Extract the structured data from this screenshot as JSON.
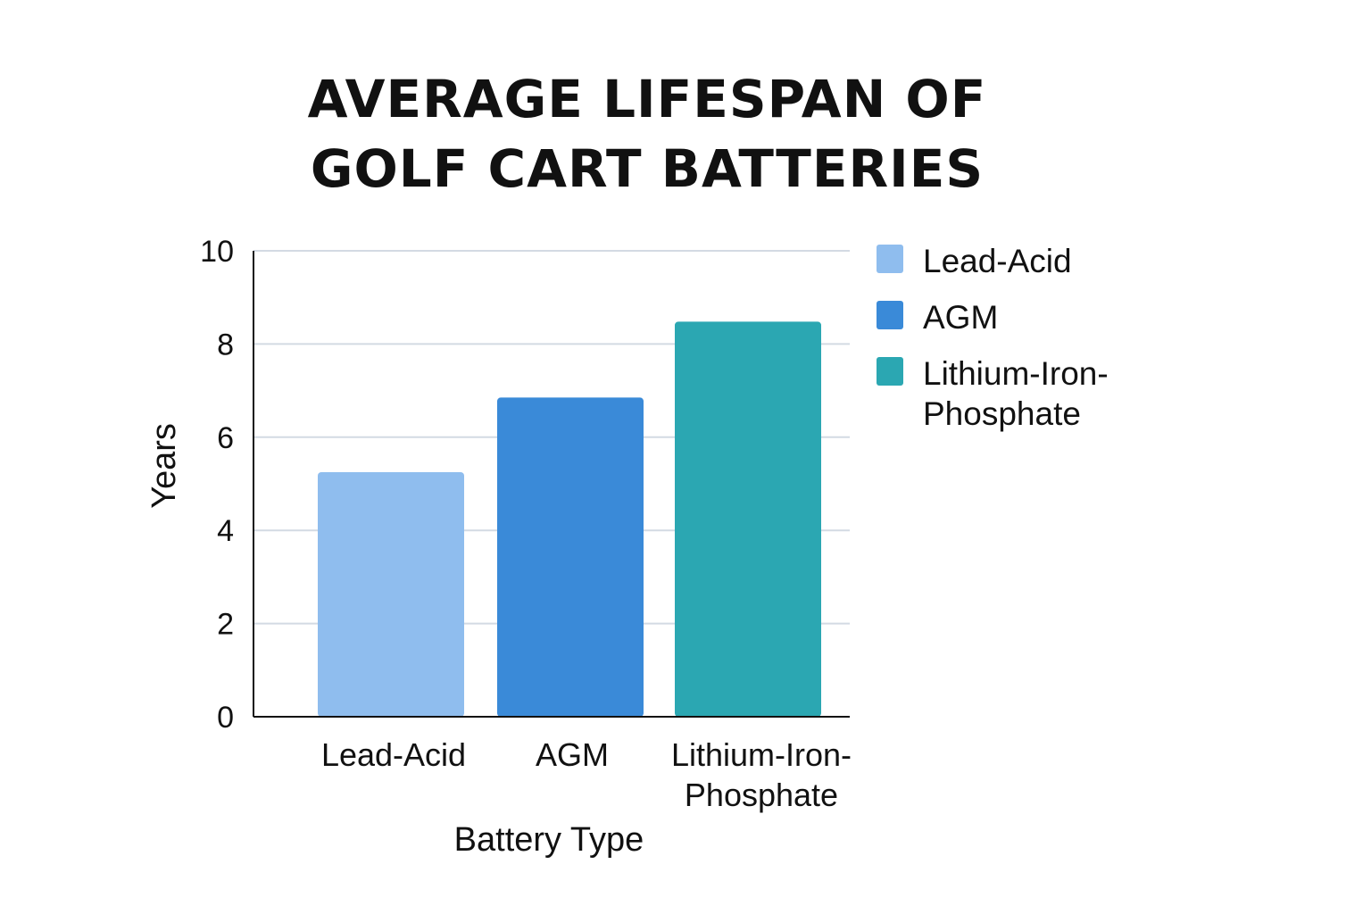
{
  "chart_data": {
    "type": "bar",
    "title_lines": [
      "AVERAGE LIFESPAN OF",
      "GOLF CART BATTERIES"
    ],
    "xlabel": "Battery Type",
    "ylabel": "Years",
    "categories": [
      "Lead-Acid",
      "AGM",
      "Lithium-Iron-Phosphate"
    ],
    "category_label_lines": [
      [
        "Lead-Acid"
      ],
      [
        "AGM"
      ],
      [
        "Lithium-Iron-",
        "Phosphate"
      ]
    ],
    "values": [
      5.25,
      6.85,
      8.48
    ],
    "colors": [
      "#8fbdee",
      "#3a8ad8",
      "#2ba7b2"
    ],
    "ylim": [
      0,
      10
    ],
    "yticks": [
      0,
      2,
      4,
      6,
      8,
      10
    ],
    "grid": true,
    "legend": {
      "position": "right",
      "entries": [
        {
          "label_lines": [
            "Lead-Acid"
          ],
          "color": "#8fbdee"
        },
        {
          "label_lines": [
            "AGM"
          ],
          "color": "#3a8ad8"
        },
        {
          "label_lines": [
            "Lithium-Iron-",
            "Phosphate"
          ],
          "color": "#2ba7b2"
        }
      ]
    }
  }
}
